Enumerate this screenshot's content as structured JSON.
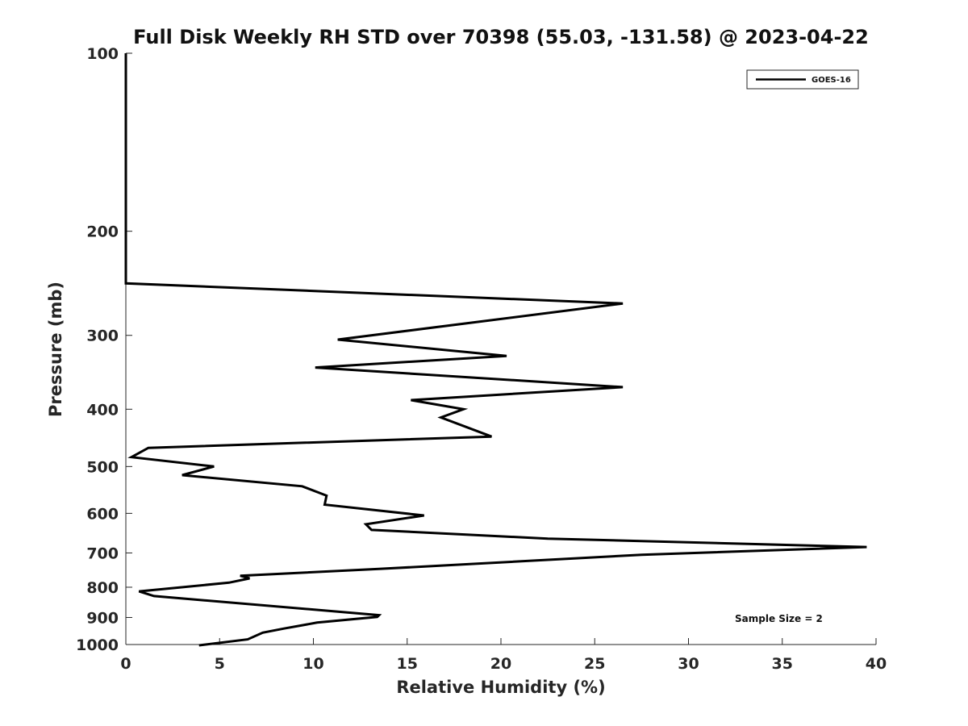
{
  "chart_data": {
    "type": "line",
    "title": "Full Disk Weekly RH STD over 70398 (55.03, -131.58) @ 2023-04-22",
    "xlabel": "Relative Humidity (%)",
    "ylabel": "Pressure (mb)",
    "xlim": [
      0,
      40
    ],
    "ylim": [
      100,
      1000
    ],
    "yscale": "log",
    "grid": false,
    "legend_position": "top-right",
    "x_ticks": [
      "0",
      "5",
      "10",
      "15",
      "20",
      "25",
      "30",
      "35",
      "40"
    ],
    "y_ticks": [
      "100",
      "200",
      "300",
      "400",
      "500",
      "600",
      "700",
      "800",
      "900",
      "1000"
    ],
    "annotation": "Sample Size = 2",
    "series": [
      {
        "name": "GOES-16",
        "color": "#000000",
        "x": [
          0.0,
          0.0,
          0.0,
          0.0,
          26.5,
          11.3,
          20.3,
          10.1,
          26.5,
          15.2,
          18.0,
          16.8,
          19.5,
          1.2,
          0.3,
          4.7,
          3.0,
          9.4,
          10.7,
          10.6,
          15.9,
          12.8,
          13.1,
          22.5,
          39.5,
          27.5,
          13.5,
          6.1,
          6.6,
          5.5,
          0.7,
          1.5,
          13.5,
          13.4,
          10.2,
          8.4,
          7.3,
          6.5,
          3.9
        ],
        "y": [
          100,
          150,
          200,
          245,
          265,
          305,
          325,
          340,
          367,
          386,
          400,
          413,
          445,
          465,
          482,
          500,
          517,
          540,
          560,
          580,
          605,
          626,
          640,
          662,
          684,
          705,
          745,
          765,
          773,
          786,
          813,
          828,
          892,
          898,
          918,
          940,
          955,
          980,
          1003
        ]
      }
    ]
  }
}
